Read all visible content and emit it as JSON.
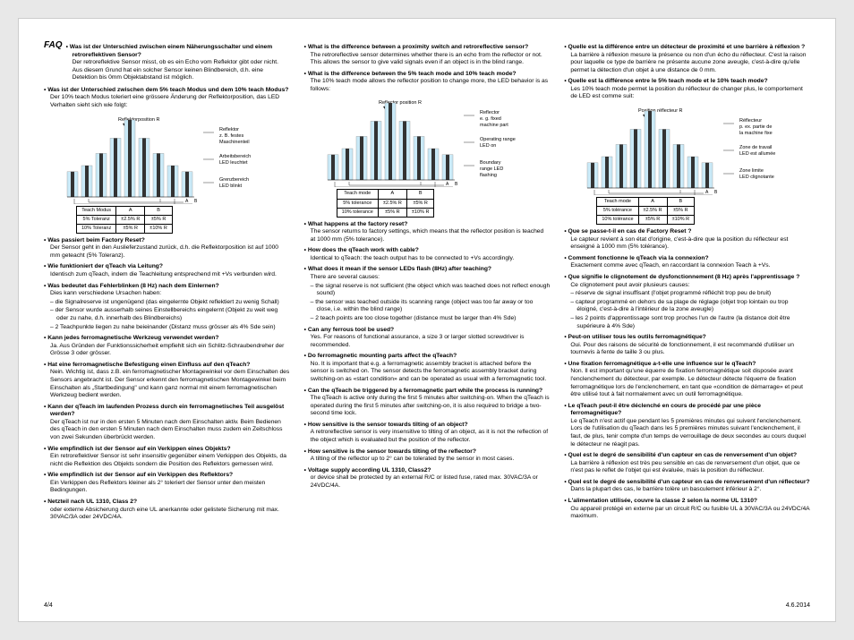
{
  "footer": {
    "left": "4/4",
    "right": "4.6.2014"
  },
  "faq_label": "FAQ",
  "diagram_de": {
    "pos_label": "Reflektorposition R",
    "refl_lbl": [
      "Reflektor",
      "z. B. festes",
      "Maschinenteil"
    ],
    "work_lbl": [
      "Arbeitsbereich",
      "LED leuchtet"
    ],
    "bound_lbl": [
      "Grenzbereich",
      "LED blinkt"
    ],
    "zone_light": "#c9e9f7",
    "zone_dark": "#333333",
    "table": {
      "h1": "Teach Modus",
      "hA": "A",
      "hB": "B",
      "r1": "5% Toleranz",
      "r1a": "±2.5% R",
      "r1b": "±5% R",
      "r2": "10% Toleranz",
      "r2a": "±5% R",
      "r2b": "±10% R"
    }
  },
  "diagram_en": {
    "pos_label": "Reflector position R",
    "refl_lbl": [
      "Reflector",
      "e. g. fixed",
      "machine part"
    ],
    "work_lbl": [
      "Operating range",
      "LED on"
    ],
    "bound_lbl": [
      "Boundary",
      "range LED",
      "flashing"
    ],
    "table": {
      "h1": "Teach mode",
      "hA": "A",
      "hB": "B",
      "r1": "5% tolerance",
      "r1a": "±2.5% R",
      "r1b": "±5% R",
      "r2": "10% tolerance",
      "r2a": "±5% R",
      "r2b": "±10% R"
    }
  },
  "diagram_fr": {
    "pos_label": "Position réflecteur R",
    "refl_lbl": [
      "Réflecteur",
      "p. ex. partie de",
      "la machine fixe"
    ],
    "work_lbl": [
      "Zone de travail",
      "LED est allumée"
    ],
    "bound_lbl": [
      "Zone limite",
      "LED clignotante"
    ],
    "table": {
      "h1": "Teach mode",
      "hA": "A",
      "hB": "B",
      "r1": "5% tolérance",
      "r1a": "±2.5% R",
      "r1b": "±5% R",
      "r2": "10% tolérance",
      "r2a": "±5% R",
      "r2b": "±10% R"
    }
  },
  "de": [
    {
      "q": "Was ist der Unterschied zwischen einem Näherungsschalter und einem retroreflektiven Sensor?",
      "a": [
        "Der retroreflektive Sensor misst, ob es ein Echo vom Reflektor gibt oder nicht. Aus diesem Grund hat ein solcher Sensor keinen Blindbereich, d.h. eine Detektion bis 0mm Objektabstand ist möglich."
      ]
    },
    {
      "q": "Was ist der Unterschied zwischen dem 5% teach Modus und dem 10% teach Modus?",
      "a": [
        "Der 10% teach Modus toleriert eine grössere Änderung der Reflektorposition, das LED Verhalten sieht sich wie folgt:"
      ],
      "diagram": true
    },
    {
      "q": "Was passiert beim Factory Reset?",
      "a": [
        "Der Sensor geht in den Auslieferzustand zurück, d.h. die Reflektorposition ist auf 1000 mm geteacht (5% Toleranz)."
      ]
    },
    {
      "q": "Wie funktioniert der qTeach via Leitung?",
      "a": [
        "Identisch zum qTeach, indem die Teachleitung entsprechend mit +Vs verbunden wird."
      ]
    },
    {
      "q": "Was bedeutet das Fehlerblinken (8 Hz) nach dem Einlernen?",
      "a": [
        "Dies kann verschiedene Ursachen haben:"
      ],
      "subs": [
        "die Signalreserve ist ungenügend (das eingelernte Objekt reflektiert zu wenig Schall)",
        "der Sensor wurde ausserhalb seines Einstellbereichs eingelernt (Objekt zu weit weg oder zu nahe, d.h. innerhalb des Blindbereichs)",
        "2 Teachpunkte liegen zu nahe beieinander (Distanz muss grösser als 4% Sde sein)"
      ]
    },
    {
      "q": "Kann jedes ferromagnetische Werkzeug verwendet werden?",
      "a": [
        "Ja. Aus Gründen der Funktionssicherheit empfiehlt sich ein Schlitz-Schraubendreher der Grösse 3 oder grösser."
      ]
    },
    {
      "q": "Hat eine ferromagnetische Befestigung einen Einfluss auf den qTeach?",
      "a": [
        "Nein. Wichtig ist, dass z.B. ein ferromagnetischer Montagewinkel vor dem Einschalten des Sensors angebracht ist. Der Sensor erkennt den ferromagnetischen Montagewinkel beim Einschalten als „Startbedingung\" und kann ganz normal mit einem ferromagnetischen Werkzeug bedient werden."
      ]
    },
    {
      "q": "Kann der qTeach im laufenden Prozess durch ein ferromagnetisches Teil ausgelöst werden?",
      "a": [
        "Der qTeach ist nur in den ersten 5 Minuten nach dem Einschalten aktiv. Beim Bedienen des qTeach in den ersten 5 Minuten nach dem Einschalten muss zudem ein Zeitschloss von zwei Sekunden überbrückt werden."
      ]
    },
    {
      "q": "Wie empfindlich ist der Sensor auf ein Verkippen eines Objekts?",
      "a": [
        "Ein retroreflektiver Sensor ist sehr insensitiv gegenüber einem Verkippen des Objekts, da nicht die Reflektion des Objekts sondern die Position des Reflektors gemessen wird."
      ]
    },
    {
      "q": "Wie empfindlich ist der Sensor auf ein Verkippen des Reflektors?",
      "a": [
        "Ein Verkippen des Reflektors kleiner als 2° toleriert der Sensor unter den meisten Bedingungen."
      ]
    },
    {
      "q": "Netzteil nach UL 1310, Class 2?",
      "a": [
        "oder externe Absicherung durch eine UL anerkannte oder gelistete Sicherung mit max. 30VAC/3A oder 24VDC/4A."
      ]
    }
  ],
  "en": [
    {
      "q": "What is the difference between a proximity switch and retroreflective sensor?",
      "a": [
        "The retroreflective sensor determines whether there is an echo from the reflector or not. This allows the sensor to give valid signals even if an object is in the blind range."
      ]
    },
    {
      "q": "What is the difference between the 5% teach mode and 10% teach mode?",
      "a": [
        "The 10% teach mode allows the reflector position to change more, the LED behavior is as follows:"
      ],
      "diagram": true
    },
    {
      "q": "What happens at the factory reset?",
      "a": [
        "The sensor returns to factory settings, which means that the reflector position is teached at 1000 mm (5% tolerance)."
      ]
    },
    {
      "q": "How does the qTeach work with cable?",
      "a": [
        "Identical to qTeach: the teach output has to be connected to +Vs accordingly."
      ]
    },
    {
      "q": "What does it mean if the sensor LEDs flash (8Hz) after teaching?",
      "a": [
        "There are several causes:"
      ],
      "subs": [
        "the signal reserve is not sufficient (the object which was teached does not reflect enough sound)",
        "the sensor was teached outside its scanning range (object was too far away or too close, i.e. within the blind range)",
        "2 teach points are too close together (distance must be larger than 4% Sde)"
      ]
    },
    {
      "q": "Can any ferrous tool be used?",
      "a": [
        "Yes. For reasons of functional assurance, a size 3 or larger slotted screwdriver is recommended."
      ]
    },
    {
      "q": "Do ferromagnetic mounting parts affect the qTeach?",
      "a": [
        "No. It is important that e.g. a ferromagnetic assembly bracket is attached before the sensor is switched on. The sensor detects the ferromagnetic assembly bracket during switching-on as «start condition» and can be operated as usual with a ferromagnetic tool."
      ]
    },
    {
      "q": "Can the qTeach be triggered by a ferromagnetic part while the process is running?",
      "a": [
        "The qTeach is active only during the first 5 minutes after switching-on. When the qTeach is operated during the first 5 minutes after switching-on, it is also required to bridge a two-second time lock."
      ]
    },
    {
      "q": "How sensitive is the sensor towards tilting of an object?",
      "a": [
        "A retroreflective sensor is very insensitive to tilting of an object, as it is not the reflection of the object which is evaluated but the position of the reflector."
      ]
    },
    {
      "q": "How sensitive is the sensor towards tilting of the reflector?",
      "a": [
        "A tilting of the reflector up to 2° can be tolerated by the sensor in most cases."
      ]
    },
    {
      "q": "Voltage supply according UL 1310, Class2?",
      "a": [
        "or device shall be protected by an external R/C or listed fuse, rated max. 30VAC/3A or 24VDC/4A."
      ]
    }
  ],
  "fr": [
    {
      "q": "Quelle est la différence entre un détecteur de proximité et une barrière à réflexion ?",
      "a": [
        "La barrière à réflexion mesure la présence ou non d'un écho du réflecteur. C'est la raison pour laquelle ce type de barrière ne présente aucune zone aveugle, c'est-à-dire qu'elle permet la détection d'un objet à une distance de 0 mm."
      ]
    },
    {
      "q": "Quelle est la différence entre le 5% teach mode et le 10% teach mode?",
      "a": [
        "Les 10% teach mode permet la position du réflecteur de changer plus, le comportement de LED est comme suit:"
      ],
      "diagram": true
    },
    {
      "q": "Que se passe-t-il en cas de Factory Reset ?",
      "a": [
        "Le capteur revient à son état d'origine, c'est-à-dire que la position du réflecteur est enseigné à 1000 mm (5% tolérance)."
      ]
    },
    {
      "q": "Comment fonctionne le qTeach via la connexion?",
      "a": [
        "Exactement comme avec qTeach, en raccordant la connexion Teach à +Vs."
      ]
    },
    {
      "q": "Que signifie le clignotement de dysfonctionnement (8 Hz) après l'apprentissage ?",
      "a": [
        "Ce clignotement peut avoir plusieurs causes:"
      ],
      "subs": [
        "réserve de signal insuffisant (l'objet programmé réfléchit trop peu de bruit)",
        "capteur programmé en dehors de sa plage de réglage (objet trop lointain ou trop éloigné, c'est-à-dire à l'intérieur de la zone aveugle)",
        "les 2 points d'apprentissage sont trop proches l'un de l'autre (la distance doit être supérieure à 4% Sde)"
      ]
    },
    {
      "q": "Peut-on utiliser tous les outils ferromagnétique?",
      "a": [
        "Oui. Pour des raisons de sécurité de fonctionnement, il est recommandé d'utiliser un tournevis à fente de taille 3 ou plus."
      ]
    },
    {
      "q": "Une fixation ferromagnétique a-t-elle une influence sur le qTeach?",
      "a": [
        "Non. Il est important qu'une équerre de fixation ferromagnétique soit disposée avant l'enclenchement du détecteur, par exemple. Le détecteur détecte l'équerre de fixation ferromagnétique lors de l'enclenchement, en tant que «condition de démarrage» et peut être utilisé tout à fait normalement avec un outil ferromagnétique."
      ]
    },
    {
      "q": "Le qTeach peut-il être déclenché en cours de procédé par une pièce ferromagnétique?",
      "a": [
        "Le qTeach n'est actif que pendant les 5 premières minutes qui suivent l'enclenchement. Lors de l'utilisation du qTeach dans les 5 premières minutes suivant l'enclenchement, il faut, de plus, tenir compte d'un temps de verrouillage de deux secondes au cours duquel le détecteur ne réagit pas."
      ]
    },
    {
      "q": "Quel est le degré de sensibilité d'un capteur en cas de renversement d'un objet?",
      "a": [
        "La barrière à réflexion est très peu sensible en cas de renversement d'un objet, que ce n'est pas le reflet de l'objet qui est évaluée, mais la position du réflecteur."
      ]
    },
    {
      "q": "Quel est le degré de sensibilité d'un capteur en cas de renversement d'un réflecteur?",
      "a": [
        "Dans la plupart des cas, le barrière tolère un basculement inférieur à 2°."
      ]
    },
    {
      "q": "L'alimentation utilisée, couvre la classe 2 selon la norme UL 1310?",
      "a": [
        "Ou appareil protégé en externe par un circuit R/C ou fusible UL à 30VAC/3A ou 24VDC/4A maximum."
      ]
    }
  ]
}
